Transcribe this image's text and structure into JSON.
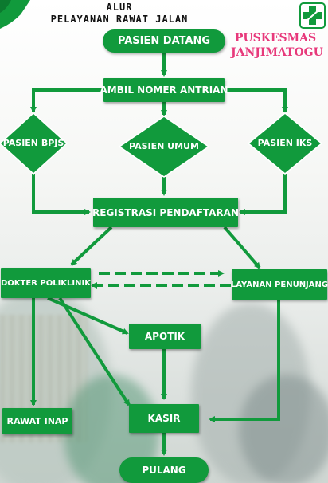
{
  "header": {
    "title_line1": "ALUR",
    "title_line2": "PELAYANAN RAWAT JALAN",
    "org_line1": "PUSKESMAS",
    "org_line2": "JANJIMATOGU"
  },
  "logo": {
    "icon": "health-cross-icon",
    "color": "#119a3c"
  },
  "colors": {
    "node_fill": "#119a3c",
    "arrow": "#119a3c",
    "org_text": "#e7397b"
  },
  "flow": {
    "pasien_datang": "PASIEN DATANG",
    "ambil_nomer_antrian": "AMBIL NOMER ANTRIAN",
    "pasien_bpjs": "PASIEN BPJS",
    "pasien_umum": "PASIEN UMUM",
    "pasien_iks": "PASIEN IKS",
    "registrasi_pendaftaran": "REGISTRASI PENDAFTARAN",
    "dokter_poliklinik": "DOKTER POLIKLINIK",
    "layanan_penunjang": "LAYANAN PENUNJANG",
    "apotik": "APOTIK",
    "rawat_inap": "RAWAT INAP",
    "kasir": "KASIR",
    "pulang": "PULANG"
  }
}
